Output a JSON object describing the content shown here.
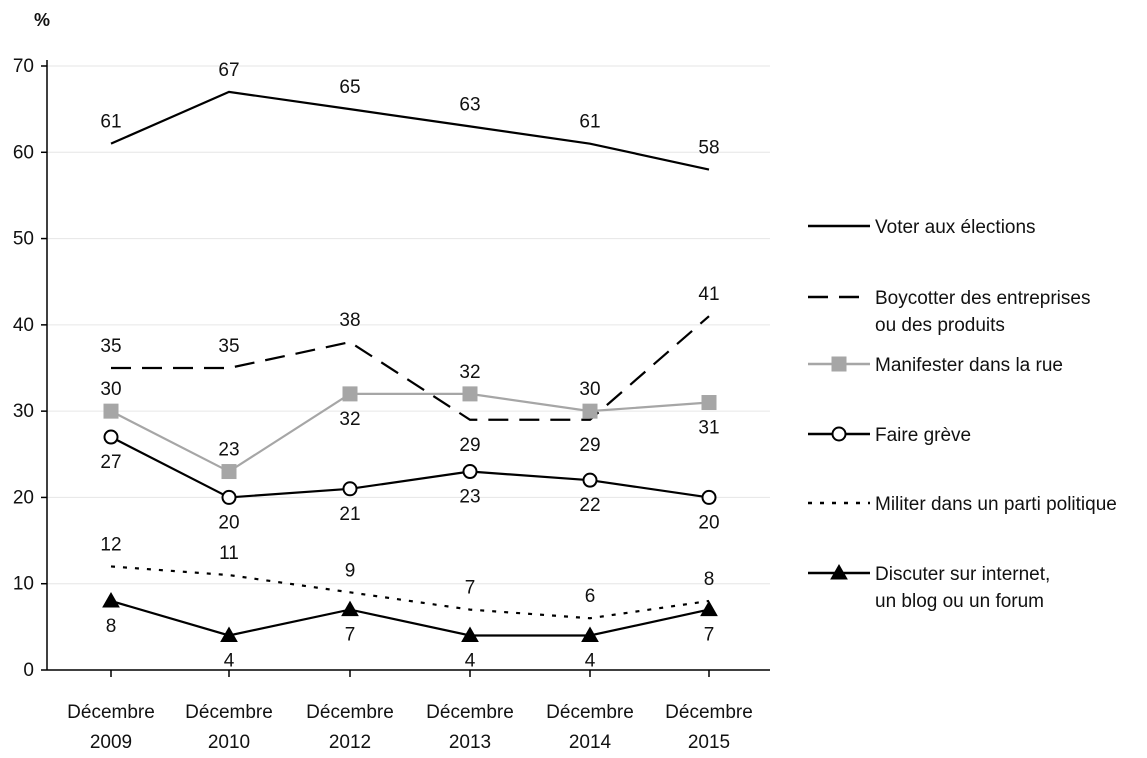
{
  "chart_data": {
    "type": "line",
    "ylabel": "%",
    "ylim": [
      0,
      70
    ],
    "yticks": [
      0,
      10,
      20,
      30,
      40,
      50,
      60,
      70
    ],
    "grid": true,
    "legend_position": "right",
    "categories": [
      [
        "Décembre",
        "2009"
      ],
      [
        "Décembre",
        "2010"
      ],
      [
        "Décembre",
        "2012"
      ],
      [
        "Décembre",
        "2013"
      ],
      [
        "Décembre",
        "2014"
      ],
      [
        "Décembre",
        "2015"
      ]
    ],
    "series": [
      {
        "name": "Voter aux élections",
        "values": [
          61,
          67,
          65,
          63,
          61,
          58
        ],
        "color": "#000000",
        "style": "solid",
        "marker": "none",
        "label_positions": [
          "above",
          "above",
          "above",
          "above",
          "above",
          "above"
        ]
      },
      {
        "name": [
          "Boycotter des entreprises",
          "ou des produits"
        ],
        "values": [
          35,
          35,
          38,
          29,
          29,
          41
        ],
        "color": "#000000",
        "style": "dashed",
        "marker": "none",
        "label_positions": [
          "above",
          "above",
          "above",
          "below",
          "below",
          "above"
        ]
      },
      {
        "name": "Manifester dans la rue",
        "values": [
          30,
          23,
          32,
          32,
          30,
          31
        ],
        "color": "#a6a6a6",
        "style": "solid",
        "marker": "square",
        "label_positions": [
          "above",
          "above",
          "below",
          "above",
          "above",
          "below"
        ]
      },
      {
        "name": "Faire grève",
        "values": [
          27,
          20,
          21,
          23,
          22,
          20
        ],
        "color": "#000000",
        "style": "solid",
        "marker": "circle",
        "label_positions": [
          "below",
          "below",
          "below",
          "below",
          "below",
          "below"
        ]
      },
      {
        "name": "Militer dans un parti politique",
        "values": [
          12,
          11,
          9,
          7,
          6,
          8
        ],
        "color": "#000000",
        "style": "dotted",
        "marker": "none",
        "label_positions": [
          "above",
          "above",
          "above",
          "above",
          "above",
          "above"
        ]
      },
      {
        "name": [
          "Discuter sur internet,",
          "un blog ou un forum"
        ],
        "values": [
          8,
          4,
          7,
          4,
          4,
          7
        ],
        "color": "#000000",
        "style": "solid",
        "marker": "triangle",
        "label_positions": [
          "below",
          "below",
          "below",
          "below",
          "below",
          "below"
        ]
      }
    ]
  }
}
